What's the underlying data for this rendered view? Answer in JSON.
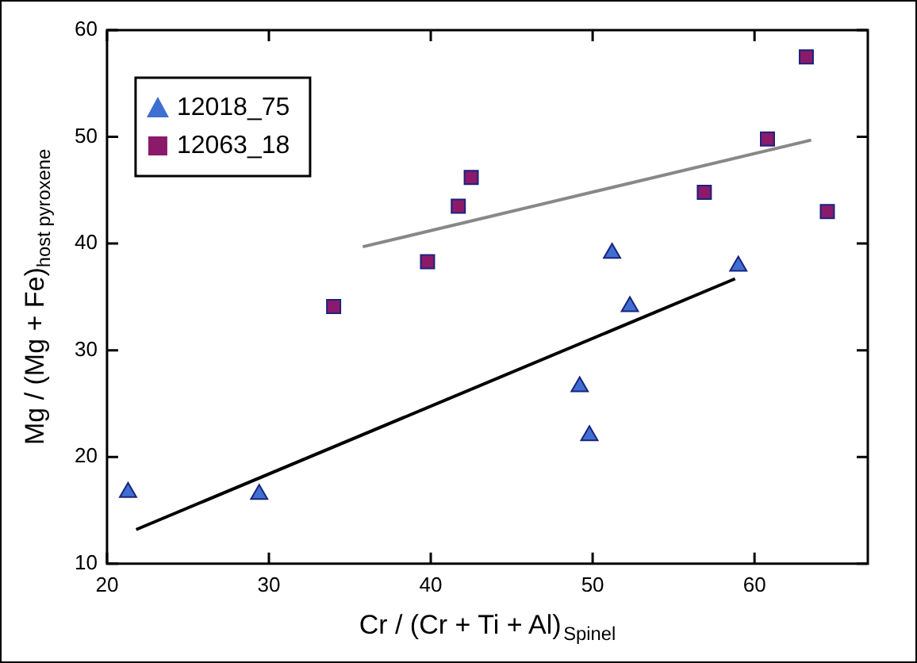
{
  "chart_data": {
    "type": "scatter",
    "xlabel": "Cr / (Cr + Ti + Al)$_{Spinel}$",
    "ylabel": "Mg / (Mg + Fe)$_{host pyroxene}$",
    "xlim": [
      20,
      67
    ],
    "xticks": [
      20,
      30,
      40,
      50,
      60
    ],
    "ylim": [
      10,
      60
    ],
    "yticks": [
      10,
      20,
      30,
      40,
      50,
      60
    ],
    "grid": false,
    "legend": "top left",
    "series": [
      {
        "name": "12018_75",
        "color": "#3f6fd1",
        "marker": "triangle",
        "x": [
          21.3,
          29.4,
          49.2,
          49.8,
          52.3,
          59.0,
          51.2
        ],
        "values": [
          16.7,
          16.5,
          26.6,
          22.0,
          34.1,
          37.9,
          39.1
        ]
      },
      {
        "name": "12063_18",
        "color": "#8b1a6b",
        "marker": "square",
        "x": [
          34.0,
          39.8,
          41.7,
          42.5,
          56.9,
          60.8,
          63.2,
          64.5
        ],
        "values": [
          34.1,
          38.3,
          43.5,
          46.2,
          44.8,
          49.8,
          57.5,
          43.0
        ]
      },
      {
        "type": "line",
        "color": "#000000",
        "marker": "none",
        "x": [
          21.8,
          58.8
        ],
        "values": [
          13.2,
          36.7
        ]
      },
      {
        "type": "line",
        "color": "#888888",
        "marker": "none",
        "x": [
          35.8,
          63.5
        ],
        "values": [
          39.7,
          49.7
        ]
      }
    ]
  }
}
